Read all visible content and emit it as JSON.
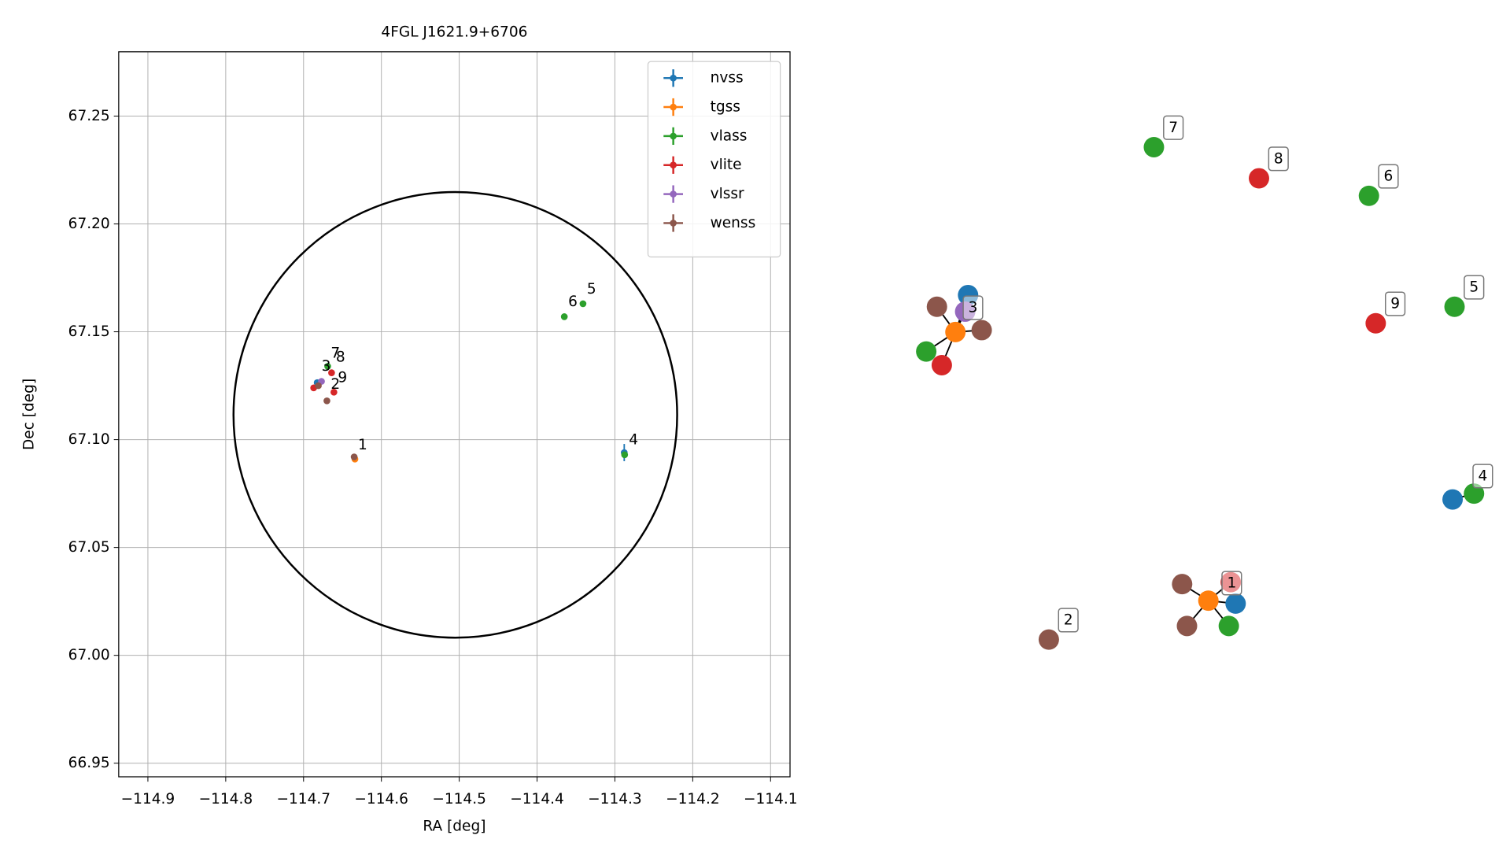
{
  "chart_data": [
    {
      "type": "scatter",
      "title": "4FGL J1621.9+6706",
      "x_label": "RA [deg]",
      "y_label": "Dec [deg]",
      "xlim": [
        -114.9375,
        -114.075
      ],
      "ylim": [
        66.9437,
        67.2798
      ],
      "xticks": [
        {
          "value": -114.9,
          "label": "−114.9"
        },
        {
          "value": -114.8,
          "label": "−114.8"
        },
        {
          "value": -114.7,
          "label": "−114.7"
        },
        {
          "value": -114.6,
          "label": "−114.6"
        },
        {
          "value": -114.5,
          "label": "−114.5"
        },
        {
          "value": -114.4,
          "label": "−114.4"
        },
        {
          "value": -114.3,
          "label": "−114.3"
        },
        {
          "value": -114.2,
          "label": "−114.2"
        },
        {
          "value": -114.1,
          "label": "−114.1"
        }
      ],
      "yticks": [
        {
          "value": 66.95,
          "label": "66.95"
        },
        {
          "value": 67.0,
          "label": "67.00"
        },
        {
          "value": 67.05,
          "label": "67.05"
        },
        {
          "value": 67.1,
          "label": "67.10"
        },
        {
          "value": 67.15,
          "label": "67.15"
        },
        {
          "value": 67.2,
          "label": "67.20"
        },
        {
          "value": 67.25,
          "label": "67.25"
        }
      ],
      "grid": true,
      "legend": "upper right",
      "circle": {
        "center": [
          -114.505,
          67.1115
        ],
        "ra_radius": 0.285,
        "dec_radius": 0.1033
      },
      "series": [
        {
          "name": "nvss",
          "color": "#1f77b4",
          "x": [
            -114.288,
            -114.6825
          ],
          "y": [
            67.094,
            67.1264
          ],
          "yerr": [
            0.004,
            0.001
          ]
        },
        {
          "name": "tgss",
          "color": "#ff7f0e",
          "x": [
            -114.634
          ],
          "y": [
            67.091
          ]
        },
        {
          "name": "vlass",
          "color": "#2ca02c",
          "x": [
            -114.2875,
            -114.365,
            -114.341,
            -114.669
          ],
          "y": [
            67.093,
            67.157,
            67.163,
            67.134
          ]
        },
        {
          "name": "vlite",
          "color": "#d62728",
          "x": [
            -114.664,
            -114.661,
            -114.687
          ],
          "y": [
            67.131,
            67.122,
            67.124
          ]
        },
        {
          "name": "vlssr",
          "color": "#9467bd",
          "x": [
            -114.677
          ],
          "y": [
            67.127
          ]
        },
        {
          "name": "wenss",
          "color": "#8c564b",
          "x": [
            -114.67,
            -114.635,
            -114.681
          ],
          "y": [
            67.118,
            67.092,
            67.125
          ]
        }
      ],
      "annotations": [
        {
          "text": "1",
          "x": -114.624,
          "y": 67.0975
        },
        {
          "text": "2",
          "x": -114.659,
          "y": 67.1255
        },
        {
          "text": "3",
          "x": -114.671,
          "y": 67.134
        },
        {
          "text": "4",
          "x": -114.276,
          "y": 67.0998
        },
        {
          "text": "5",
          "x": -114.33,
          "y": 67.1697
        },
        {
          "text": "6",
          "x": -114.354,
          "y": 67.1638
        },
        {
          "text": "7",
          "x": -114.659,
          "y": 67.14
        },
        {
          "text": "8",
          "x": -114.6525,
          "y": 67.1381
        },
        {
          "text": "9",
          "x": -114.65,
          "y": 67.1286
        }
      ]
    },
    {
      "type": "network",
      "nodes": [
        {
          "color": "#1f77b4"
        },
        {
          "color": "#8c564b"
        },
        {
          "color": "#9467bd"
        },
        {
          "color": "#ff7f0e",
          "label": "3"
        },
        {
          "color": "#8c564b"
        },
        {
          "color": "#2ca02c"
        },
        {
          "color": "#d62728"
        },
        {
          "color": "#2ca02c",
          "label": "7"
        },
        {
          "color": "#d62728",
          "label": "8"
        },
        {
          "color": "#2ca02c",
          "label": "6"
        },
        {
          "color": "#2ca02c",
          "label": "5"
        },
        {
          "color": "#d62728",
          "label": "9"
        },
        {
          "color": "#1f77b4"
        },
        {
          "color": "#2ca02c",
          "label": "4"
        },
        {
          "color": "#8c564b"
        },
        {
          "color": "#d62728"
        },
        {
          "color": "#ff7f0e",
          "label": "1"
        },
        {
          "color": "#1f77b4"
        },
        {
          "color": "#8c564b"
        },
        {
          "color": "#2ca02c"
        },
        {
          "color": "#8c564b",
          "label": "2"
        }
      ]
    }
  ]
}
